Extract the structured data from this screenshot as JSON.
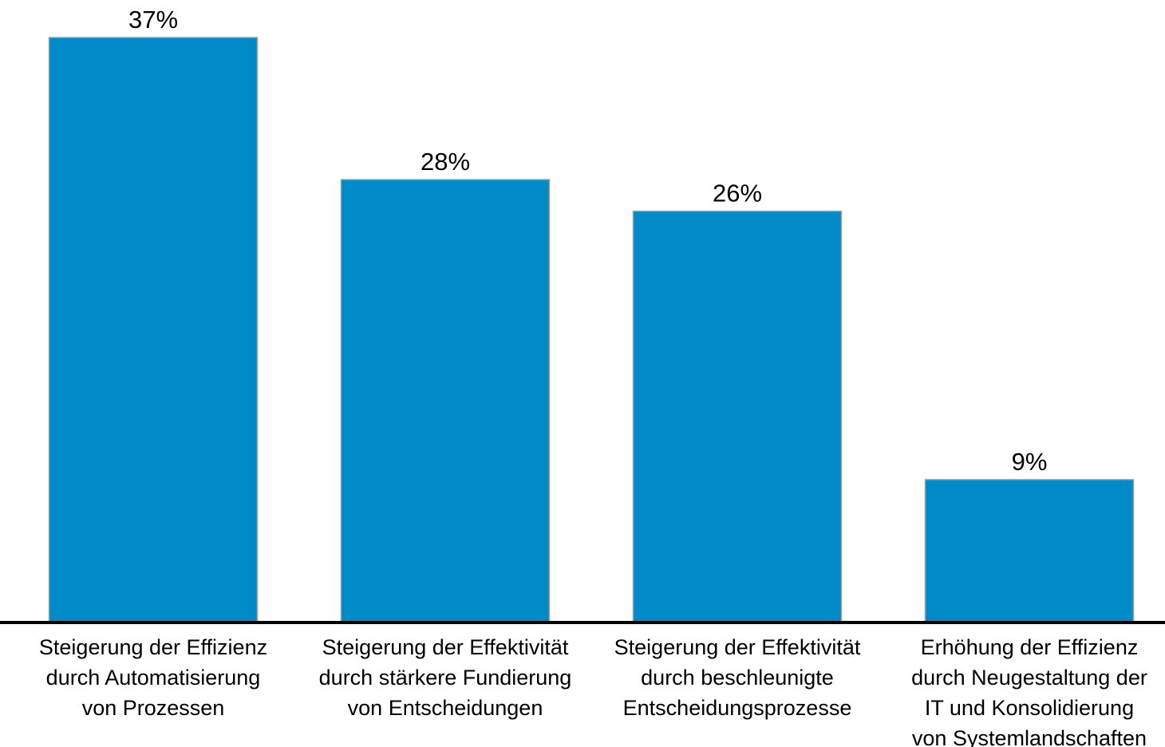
{
  "chart_data": {
    "type": "bar",
    "categories": [
      [
        "Steigerung der Effizienz",
        "durch Automatisierung",
        "von Prozessen"
      ],
      [
        "Steigerung der Effektivität",
        "durch stärkere Fundierung",
        "von Entscheidungen"
      ],
      [
        "Steigerung der Effektivität",
        "durch beschleunigte",
        "Entscheidungsprozesse"
      ],
      [
        "Erhöhung der Effizienz",
        "durch Neugestaltung der",
        "IT und Konsolidierung",
        "von Systemlandschaften"
      ]
    ],
    "values": [
      37,
      28,
      26,
      9
    ],
    "value_labels": [
      "37%",
      "28%",
      "26%",
      "9%"
    ],
    "color": "#008bc8"
  }
}
